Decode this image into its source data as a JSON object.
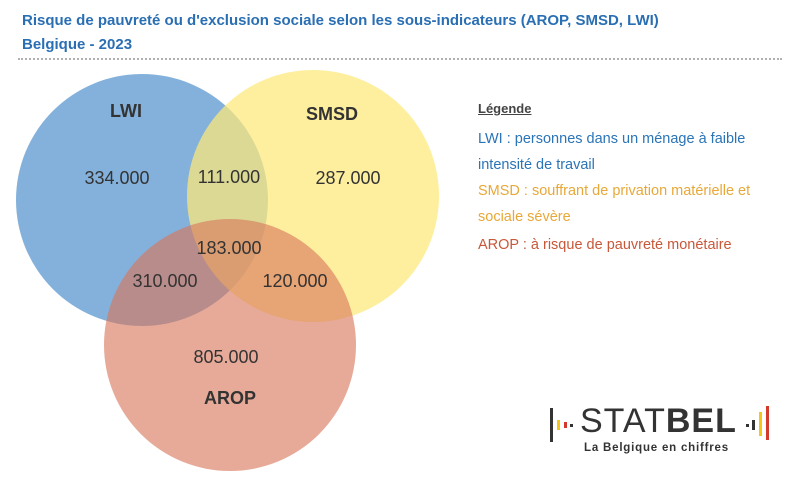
{
  "header": {
    "title": "Risque de pauvreté ou d'exclusion sociale selon les sous-indicateurs (AROP, SMSD, LWI)",
    "subtitle": "Belgique - 2023"
  },
  "venn": {
    "sets": [
      {
        "name": "LWI",
        "color": "#6fa3d5"
      },
      {
        "name": "SMSD",
        "color": "#fde97a"
      },
      {
        "name": "AROP",
        "color": "#d9765a"
      }
    ],
    "regions": {
      "lwi_only": "334.000",
      "lwi_smsd": "111.000",
      "smsd_only": "287.000",
      "all_three": "183.000",
      "lwi_arop": "310.000",
      "smsd_arop": "120.000",
      "arop_only": "805.000"
    }
  },
  "legend": {
    "title": "Légende",
    "lwi": "LWI : personnes dans un ménage à faible intensité de travail",
    "smsd": "SMSD : souffrant de privation matérielle et sociale sévère",
    "arop": "AROP : à risque de pauvreté monétaire",
    "colors": {
      "lwi": "#2a74b8",
      "smsd": "#e8a838",
      "arop": "#c8583a"
    }
  },
  "logo": {
    "name_light": "STAT",
    "name_bold": "BEL",
    "tagline": "La Belgique en chiffres",
    "bar_colors": [
      "#333333",
      "#f5c518",
      "#d33a2c"
    ]
  }
}
